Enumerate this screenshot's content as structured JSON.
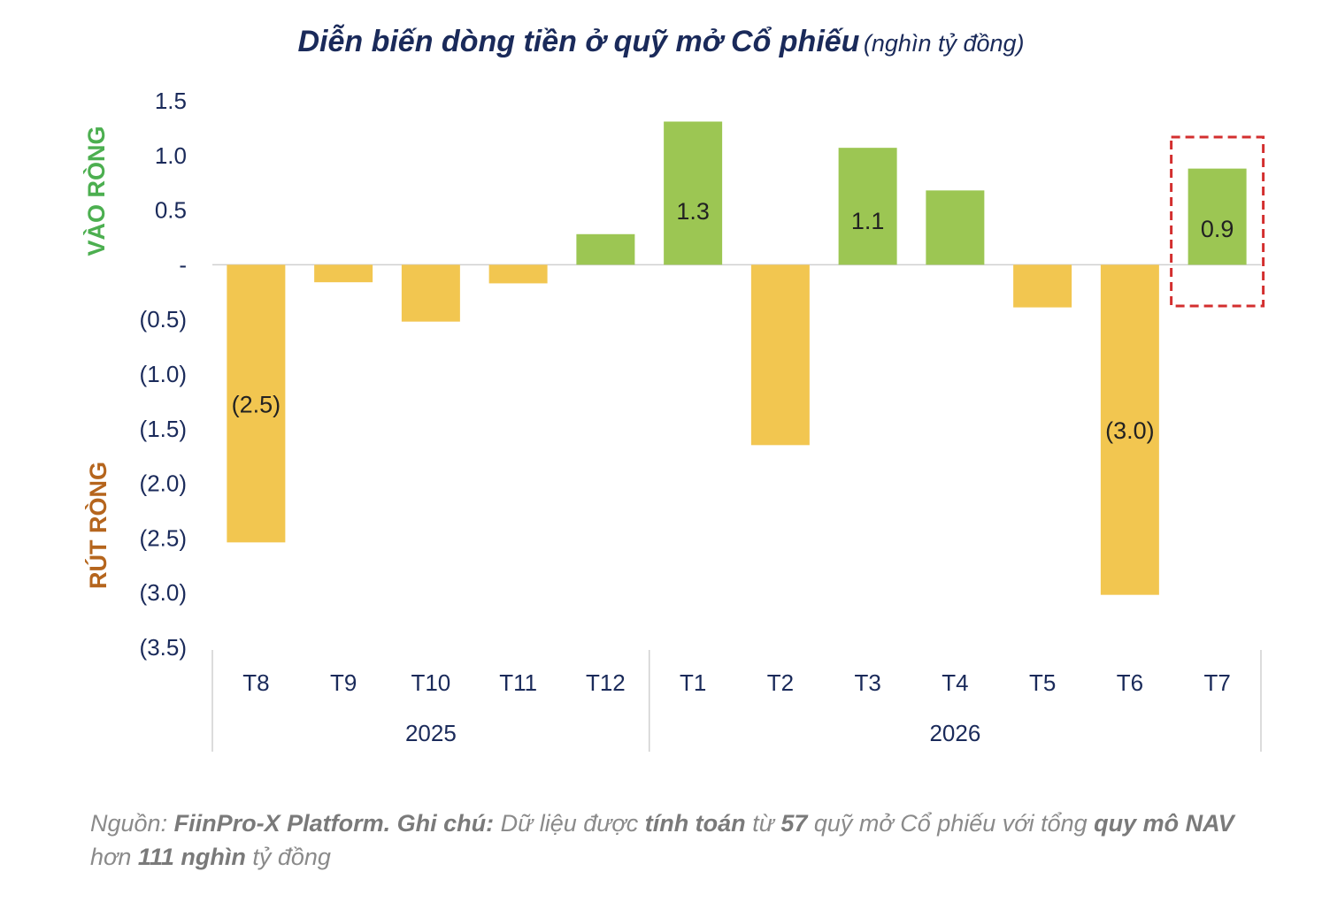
{
  "title": {
    "main": "Diễn biến dòng tiền ở quỹ mở Cổ phiếu",
    "unit": "(nghìn tỷ đồng)"
  },
  "side_labels": {
    "inflow": "VÀO RÒNG",
    "outflow": "RÚT RÒNG"
  },
  "colors": {
    "inflow": "#9cc653",
    "outflow": "#f2c650",
    "inflow_label": "#4caf50",
    "outflow_label": "#b5651d",
    "title": "#1a2a5a",
    "highlight_box": "#d32f2f"
  },
  "chart_data": {
    "type": "bar",
    "categories": [
      "T8",
      "T9",
      "T10",
      "T11",
      "T12",
      "T1",
      "T2",
      "T3",
      "T4",
      "T5",
      "T6",
      "T7"
    ],
    "groups": [
      {
        "label": "2025",
        "categories": [
          "T8",
          "T9",
          "T10",
          "T11",
          "T12"
        ]
      },
      {
        "label": "2026",
        "categories": [
          "T1",
          "T2",
          "T3",
          "T4",
          "T5",
          "T6",
          "T7"
        ]
      }
    ],
    "values": [
      -2.54,
      -0.16,
      -0.52,
      -0.17,
      0.28,
      1.31,
      -1.65,
      1.07,
      0.68,
      -0.39,
      -3.02,
      0.88
    ],
    "data_labels": [
      "(2.5)",
      "",
      "",
      "",
      "",
      "1.3",
      "",
      "1.1",
      "",
      "",
      "(3.0)",
      "0.9"
    ],
    "ylim": [
      -3.5,
      1.5
    ],
    "yticks": [
      1.5,
      1.0,
      0.5,
      0,
      -0.5,
      -1.0,
      -1.5,
      -2.0,
      -2.5,
      -3.0,
      -3.5
    ],
    "ytick_labels": [
      "1.5",
      "1.0",
      "0.5",
      "-",
      "(0.5)",
      "(1.0)",
      "(1.5)",
      "(2.0)",
      "(2.5)",
      "(3.0)",
      "(3.5)"
    ],
    "highlighted_category": "T7",
    "legend": "none",
    "grid": false
  },
  "footer": {
    "parts": [
      {
        "text": "Nguồn: ",
        "bold": false
      },
      {
        "text": "FiinPro-X Platform. Ghi chú:",
        "bold": true
      },
      {
        "text": " Dữ liệu được ",
        "bold": false
      },
      {
        "text": "tính toán",
        "bold": true
      },
      {
        "text": " từ ",
        "bold": false
      },
      {
        "text": "57",
        "bold": true
      },
      {
        "text": " quỹ mở Cổ phiếu với tổng ",
        "bold": false
      },
      {
        "text": "quy mô NAV",
        "bold": true
      },
      {
        "text": " hơn ",
        "bold": false
      },
      {
        "text": "111 nghìn",
        "bold": true
      },
      {
        "text": " tỷ đồng",
        "bold": false
      }
    ]
  }
}
